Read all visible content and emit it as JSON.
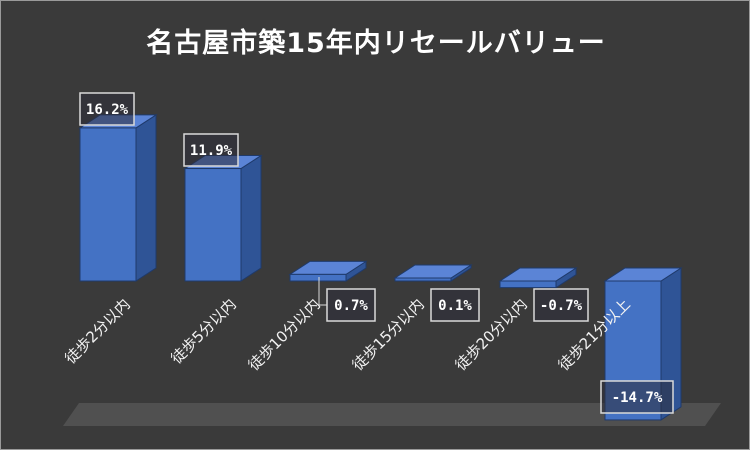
{
  "chart_data": {
    "type": "bar",
    "title": "名古屋市築15年内リセールバリュー",
    "categories": [
      "徒歩2分以内",
      "徒歩5分以内",
      "徒歩10分以内",
      "徒歩15分以内",
      "徒歩20分以内",
      "徒歩21分以上"
    ],
    "values": [
      16.2,
      11.9,
      0.7,
      0.1,
      -0.7,
      -14.7
    ],
    "data_labels": [
      "16.2%",
      "11.9%",
      "0.7%",
      "0.1%",
      "-0.7%",
      "-14.7%"
    ],
    "unit": "%",
    "ylim": [
      -15,
      17
    ],
    "grid": false,
    "legend": "none",
    "style": "3d-column"
  },
  "colors": {
    "background": "#3a3a3a",
    "bar_front": "#4472c4",
    "bar_side": "#2f5496",
    "bar_top": "#5b84d6",
    "floor": "#555555",
    "label_border": "#d9d9d9",
    "label_fill": "#2e2e3a",
    "text": "#ffffff"
  }
}
